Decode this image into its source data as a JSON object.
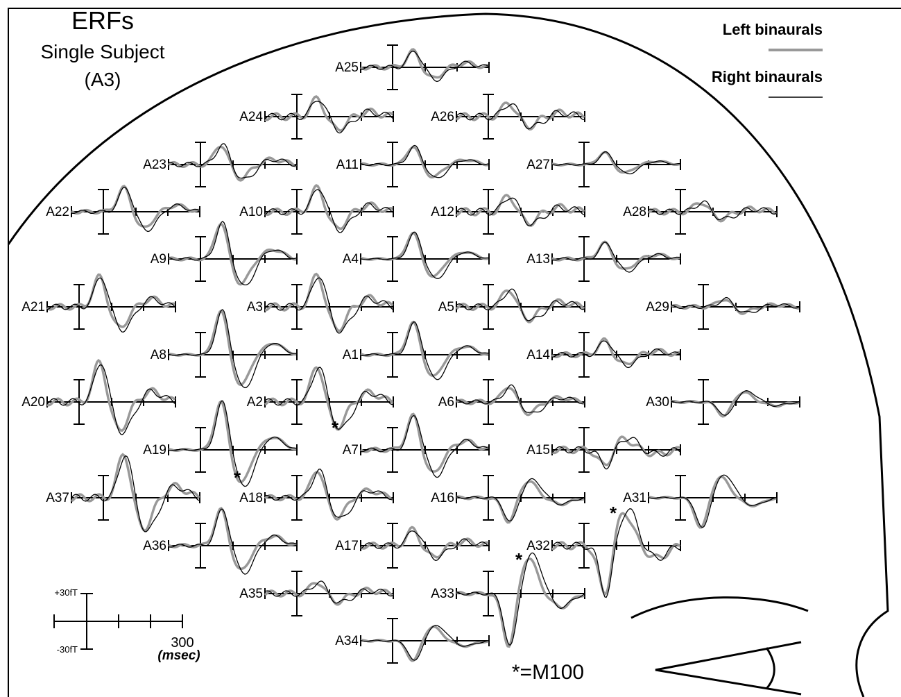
{
  "title": {
    "lines": [
      "ERFs",
      "Single Subject",
      "(A3)"
    ]
  },
  "legend": {
    "left": "Left binaurals",
    "right": "Right binaurals"
  },
  "channels": [
    "A25",
    "A24",
    "A26",
    "A23",
    "A11",
    "A27",
    "A22",
    "A10",
    "A12",
    "A28",
    "A9",
    "A4",
    "A13",
    "A21",
    "A3",
    "A5",
    "A29",
    "A8",
    "A1",
    "A14",
    "A20",
    "A2",
    "A6",
    "A30",
    "A19",
    "A7",
    "A15",
    "A37",
    "A18",
    "A16",
    "A31",
    "A36",
    "A17",
    "A32",
    "A35",
    "A33",
    "A34"
  ],
  "m100_markers": [
    "*",
    "*",
    "*",
    "*"
  ],
  "scale": {
    "top": "+30fT",
    "bottom": "-30fT",
    "time": "300",
    "unit": "(msec)"
  },
  "footnote": "*=M100"
}
